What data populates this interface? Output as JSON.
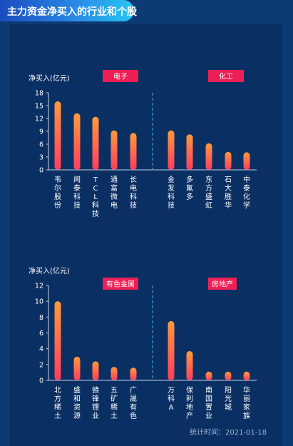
{
  "header": {
    "title": "主力资金净买入的行业和个股"
  },
  "footer": {
    "stat_time": "统计时间：2021-01-18"
  },
  "chart_data": [
    {
      "type": "bar",
      "ylabel": "净买入(亿元)",
      "ylim": [
        0,
        18
      ],
      "yticks": [
        0,
        3,
        6,
        9,
        12,
        15,
        18
      ],
      "groups": [
        {
          "name": "电子",
          "categories": [
            "韦尔股份",
            "闻泰科技",
            "TCL科技",
            "通富微电",
            "长电科技"
          ],
          "values": [
            16,
            13.2,
            12.4,
            9.2,
            8.6
          ]
        },
        {
          "name": "化工",
          "categories": [
            "金发科技",
            "多氟多",
            "东方盛虹",
            "石大胜华",
            "中泰化学"
          ],
          "values": [
            9.2,
            8.3,
            6.2,
            4.2,
            4.1
          ]
        }
      ]
    },
    {
      "type": "bar",
      "ylabel": "净买入(亿元)",
      "ylim": [
        0,
        12
      ],
      "yticks": [
        0,
        2,
        4,
        6,
        8,
        10,
        12
      ],
      "groups": [
        {
          "name": "有色金属",
          "categories": [
            "北方稀土",
            "盛和资源",
            "赣锋锂业",
            "五矿稀土",
            "广晟有色"
          ],
          "values": [
            10,
            3,
            2.4,
            1.7,
            1.6
          ]
        },
        {
          "name": "房地产",
          "categories": [
            "万科A",
            "保利地产",
            "南国置业",
            "阳光城",
            "华丽家族"
          ],
          "values": [
            7.5,
            3.7,
            1.1,
            1.1,
            1.1
          ]
        }
      ]
    }
  ]
}
